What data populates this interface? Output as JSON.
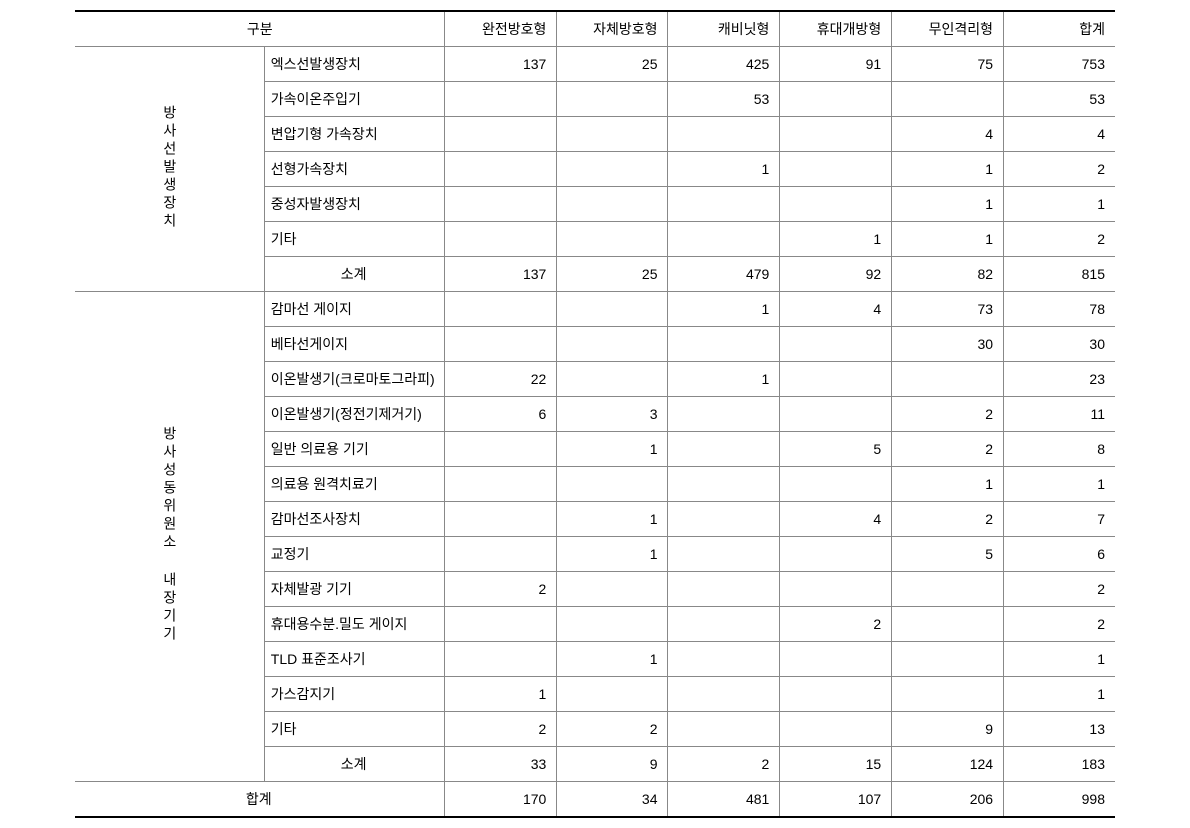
{
  "header": {
    "category": "구분",
    "cols": [
      "완전방호형",
      "자체방호형",
      "캐비닛형",
      "휴대개방형",
      "무인격리형",
      "합계"
    ]
  },
  "groups": [
    {
      "vlabel": "방사선발생장치",
      "rows": [
        {
          "label": "엑스선발생장치",
          "vals": [
            "137",
            "25",
            "425",
            "91",
            "75",
            "753"
          ]
        },
        {
          "label": "가속이온주입기",
          "vals": [
            "",
            "",
            "53",
            "",
            "",
            "53"
          ]
        },
        {
          "label": "변압기형 가속장치",
          "vals": [
            "",
            "",
            "",
            "",
            "4",
            "4"
          ]
        },
        {
          "label": "선형가속장치",
          "vals": [
            "",
            "",
            "1",
            "",
            "1",
            "2"
          ]
        },
        {
          "label": "중성자발생장치",
          "vals": [
            "",
            "",
            "",
            "",
            "1",
            "1"
          ]
        },
        {
          "label": "기타",
          "vals": [
            "",
            "",
            "",
            "1",
            "1",
            "2"
          ]
        }
      ],
      "subtotal": {
        "label": "소계",
        "vals": [
          "137",
          "25",
          "479",
          "92",
          "82",
          "815"
        ]
      }
    },
    {
      "vlabel": "방사성동위원소 내장기기",
      "rows": [
        {
          "label": "감마선 게이지",
          "vals": [
            "",
            "",
            "1",
            "4",
            "73",
            "78"
          ]
        },
        {
          "label": "베타선게이지",
          "vals": [
            "",
            "",
            "",
            "",
            "30",
            "30"
          ]
        },
        {
          "label": "이온발생기(크로마토그라피)",
          "vals": [
            "22",
            "",
            "1",
            "",
            "",
            "23"
          ]
        },
        {
          "label": "이온발생기(정전기제거기)",
          "vals": [
            "6",
            "3",
            "",
            "",
            "2",
            "11"
          ]
        },
        {
          "label": "일반 의료용 기기",
          "vals": [
            "",
            "1",
            "",
            "5",
            "2",
            "8"
          ]
        },
        {
          "label": "의료용 원격치료기",
          "vals": [
            "",
            "",
            "",
            "",
            "1",
            "1"
          ]
        },
        {
          "label": "감마선조사장치",
          "vals": [
            "",
            "1",
            "",
            "4",
            "2",
            "7"
          ]
        },
        {
          "label": "교정기",
          "vals": [
            "",
            "1",
            "",
            "",
            "5",
            "6"
          ]
        },
        {
          "label": "자체발광 기기",
          "vals": [
            "2",
            "",
            "",
            "",
            "",
            "2"
          ]
        },
        {
          "label": "휴대용수분.밀도 게이지",
          "vals": [
            "",
            "",
            "",
            "2",
            "",
            "2"
          ]
        },
        {
          "label": "TLD 표준조사기",
          "vals": [
            "",
            "1",
            "",
            "",
            "",
            "1"
          ]
        },
        {
          "label": "가스감지기",
          "vals": [
            "1",
            "",
            "",
            "",
            "",
            "1"
          ]
        },
        {
          "label": "기타",
          "vals": [
            "2",
            "2",
            "",
            "",
            "9",
            "13"
          ]
        }
      ],
      "subtotal": {
        "label": "소계",
        "vals": [
          "33",
          "9",
          "2",
          "15",
          "124",
          "183"
        ]
      }
    }
  ],
  "grand": {
    "label": "합계",
    "vals": [
      "170",
      "34",
      "481",
      "107",
      "206",
      "998"
    ]
  }
}
